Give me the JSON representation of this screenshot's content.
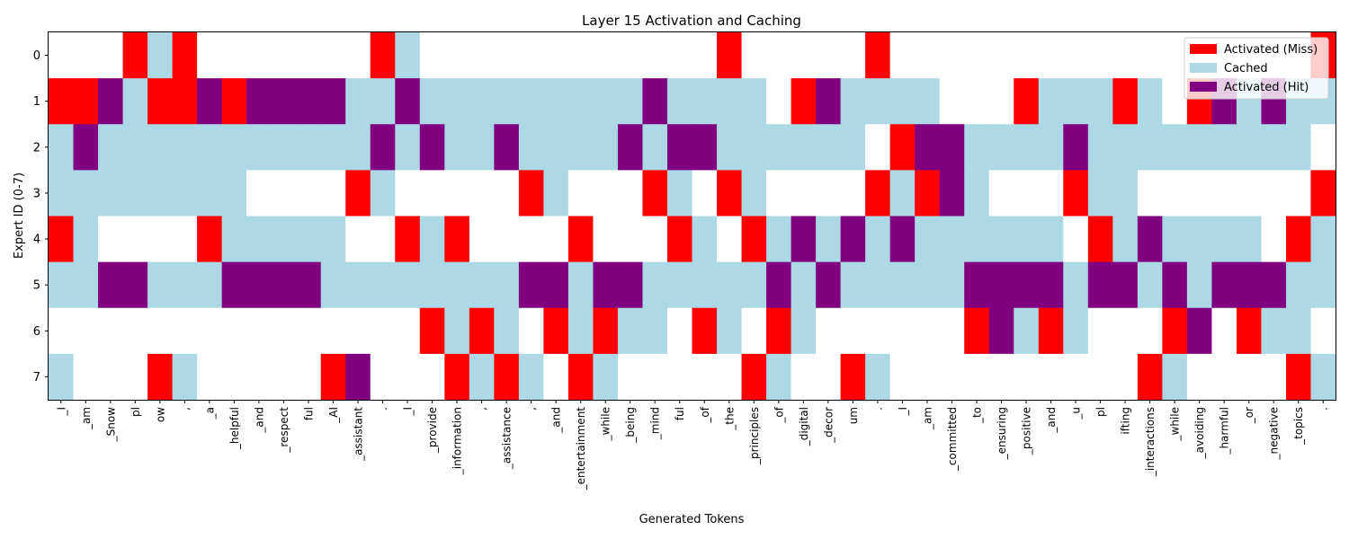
{
  "chart_data": {
    "type": "heatmap",
    "title": "Layer 15 Activation and Caching",
    "xlabel": "Generated Tokens",
    "ylabel": "Expert ID (0-7)",
    "yticks": [
      "0",
      "1",
      "2",
      "3",
      "4",
      "5",
      "6",
      "7"
    ],
    "tokens": [
      "_I",
      "_am",
      "_Snow",
      "pl",
      "ow",
      ",",
      "_a",
      "_helpful",
      "_and",
      "_respect",
      "ful",
      "_AI",
      "_assistant",
      ".",
      "_I",
      "_provide",
      "_information",
      ",",
      "_assistance",
      ",",
      "_and",
      "_entertainment",
      "_while",
      "_being",
      "_mind",
      "ful",
      "_of",
      "_the",
      "_principles",
      "_of",
      "_digital",
      "_decor",
      "um",
      ".",
      "_I",
      "_am",
      "_committed",
      "_to",
      "_ensuring",
      "_positive",
      "_and",
      "_u",
      "pl",
      "ifting",
      "_interactions",
      "_while",
      "_avoiding",
      "_harmful",
      "_or",
      "_negative",
      "_topics",
      "."
    ],
    "state_codes": {
      "0": "none",
      "1": "Activated (Miss)",
      "2": "Cached",
      "3": "Activated (Hit)"
    },
    "colors": {
      "0": "#ffffff",
      "1": "#ff0000",
      "2": "#add8e6",
      "3": "#800080"
    },
    "legend": {
      "position": "top-right",
      "entries": [
        {
          "label": "Activated (Miss)",
          "color": "#ff0000"
        },
        {
          "label": "Cached",
          "color": "#add8e6"
        },
        {
          "label": "Activated (Hit)",
          "color": "#800080"
        }
      ]
    },
    "matrix": [
      [
        0,
        0,
        0,
        1,
        2,
        1,
        0,
        0,
        0,
        0,
        0,
        0,
        0,
        1,
        2,
        0,
        0,
        0,
        0,
        0,
        0,
        0,
        0,
        0,
        0,
        0,
        0,
        1,
        0,
        0,
        0,
        0,
        0,
        1,
        0,
        0,
        0,
        0,
        0,
        0,
        0,
        0,
        0,
        0,
        0,
        0,
        0,
        0,
        0,
        0,
        0,
        1
      ],
      [
        1,
        1,
        3,
        2,
        1,
        1,
        3,
        1,
        3,
        3,
        3,
        3,
        2,
        2,
        3,
        2,
        2,
        2,
        2,
        2,
        2,
        2,
        2,
        2,
        3,
        2,
        2,
        2,
        2,
        0,
        1,
        3,
        2,
        2,
        2,
        2,
        0,
        0,
        0,
        1,
        2,
        2,
        2,
        1,
        2,
        0,
        1,
        3,
        2,
        3,
        2,
        2
      ],
      [
        2,
        3,
        2,
        2,
        2,
        2,
        2,
        2,
        2,
        2,
        2,
        2,
        2,
        3,
        2,
        3,
        2,
        2,
        3,
        2,
        2,
        2,
        2,
        3,
        2,
        3,
        3,
        2,
        2,
        2,
        2,
        2,
        2,
        0,
        1,
        3,
        3,
        2,
        2,
        2,
        2,
        3,
        2,
        2,
        2,
        2,
        2,
        2,
        2,
        2,
        2,
        0
      ],
      [
        2,
        2,
        2,
        2,
        2,
        2,
        2,
        2,
        0,
        0,
        0,
        0,
        1,
        2,
        0,
        0,
        0,
        0,
        0,
        1,
        2,
        0,
        0,
        0,
        1,
        2,
        0,
        1,
        2,
        0,
        0,
        0,
        0,
        1,
        2,
        1,
        3,
        2,
        0,
        0,
        0,
        1,
        2,
        2,
        0,
        0,
        0,
        0,
        0,
        0,
        0,
        1
      ],
      [
        1,
        2,
        0,
        0,
        0,
        0,
        1,
        2,
        2,
        2,
        2,
        2,
        0,
        0,
        1,
        2,
        1,
        0,
        0,
        0,
        0,
        1,
        0,
        0,
        0,
        1,
        2,
        0,
        1,
        2,
        3,
        2,
        3,
        2,
        3,
        2,
        2,
        2,
        2,
        2,
        2,
        0,
        1,
        2,
        3,
        2,
        2,
        2,
        2,
        0,
        1,
        2
      ],
      [
        2,
        2,
        3,
        3,
        2,
        2,
        2,
        3,
        3,
        3,
        3,
        2,
        2,
        2,
        2,
        2,
        2,
        2,
        2,
        3,
        3,
        2,
        3,
        3,
        2,
        2,
        2,
        2,
        2,
        3,
        2,
        3,
        2,
        2,
        2,
        2,
        2,
        3,
        3,
        3,
        3,
        2,
        3,
        3,
        2,
        3,
        2,
        3,
        3,
        3,
        2,
        2
      ],
      [
        0,
        0,
        0,
        0,
        0,
        0,
        0,
        0,
        0,
        0,
        0,
        0,
        0,
        0,
        0,
        1,
        2,
        1,
        2,
        0,
        1,
        2,
        1,
        2,
        2,
        0,
        1,
        2,
        0,
        1,
        2,
        0,
        0,
        0,
        0,
        0,
        0,
        1,
        3,
        2,
        1,
        2,
        0,
        0,
        0,
        1,
        3,
        0,
        1,
        2,
        2,
        0
      ],
      [
        2,
        0,
        0,
        0,
        1,
        2,
        0,
        0,
        0,
        0,
        0,
        1,
        3,
        0,
        0,
        0,
        1,
        2,
        1,
        2,
        0,
        1,
        2,
        0,
        0,
        0,
        0,
        0,
        1,
        2,
        0,
        0,
        1,
        2,
        0,
        0,
        0,
        0,
        0,
        0,
        0,
        0,
        0,
        0,
        1,
        2,
        0,
        0,
        0,
        0,
        1,
        2
      ]
    ]
  }
}
